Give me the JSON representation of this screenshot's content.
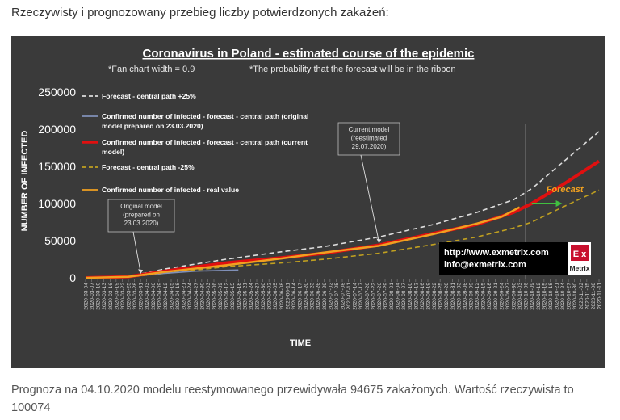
{
  "intro_text": "Rzeczywisty i prognozowany przebieg liczby potwierdzonych zakażeń:",
  "footer_text": "Prognoza na 04.10.2020 modelu reestymowanego przewidywała 94675 zakażonych. Wartość rzeczywista to 100074",
  "chart_data": {
    "type": "line",
    "title": "Coronavirus in Poland - estimated course of the epidemic",
    "subtitle_left": "*Fan chart width = 0.9",
    "subtitle_right": "*The probability that the forecast will be in the ribbon",
    "xlabel": "TIME",
    "ylabel": "NUMBER OF INFECTED",
    "ylim": [
      0,
      250000
    ],
    "yticks": [
      0,
      50000,
      100000,
      150000,
      200000,
      250000
    ],
    "grid": false,
    "legend_position": "top-left",
    "x": [
      "2020-03-04",
      "2020-03-07",
      "2020-03-10",
      "2020-03-13",
      "2020-03-16",
      "2020-03-19",
      "2020-03-22",
      "2020-03-25",
      "2020-03-28",
      "2020-03-31",
      "2020-04-03",
      "2020-04-06",
      "2020-04-09",
      "2020-04-12",
      "2020-04-15",
      "2020-04-18",
      "2020-04-21",
      "2020-04-24",
      "2020-04-27",
      "2020-04-30",
      "2020-05-03",
      "2020-05-06",
      "2020-05-09",
      "2020-05-12",
      "2020-05-15",
      "2020-05-18",
      "2020-05-21",
      "2020-05-24",
      "2020-05-27",
      "2020-05-30",
      "2020-06-02",
      "2020-06-05",
      "2020-06-08",
      "2020-06-11",
      "2020-06-14",
      "2020-06-17",
      "2020-06-20",
      "2020-06-23",
      "2020-06-26",
      "2020-06-29",
      "2020-07-02",
      "2020-07-05",
      "2020-07-08",
      "2020-07-11",
      "2020-07-14",
      "2020-07-17",
      "2020-07-20",
      "2020-07-23",
      "2020-07-26",
      "2020-07-29",
      "2020-08-01",
      "2020-08-04",
      "2020-08-07",
      "2020-08-10",
      "2020-08-13",
      "2020-08-16",
      "2020-08-19",
      "2020-08-22",
      "2020-08-25",
      "2020-08-28",
      "2020-08-31",
      "2020-09-03",
      "2020-09-06",
      "2020-09-09",
      "2020-09-12",
      "2020-09-15",
      "2020-09-18",
      "2020-09-21",
      "2020-09-24",
      "2020-09-27",
      "2020-09-30",
      "2020-10-03",
      "2020-10-06",
      "2020-10-09",
      "2020-10-12",
      "2020-10-15",
      "2020-10-18",
      "2020-10-21",
      "2020-10-24",
      "2020-10-27",
      "2020-10-30",
      "2020-11-02",
      "2020-11-05",
      "2020-11-08",
      "2020-11-11"
    ],
    "series": [
      {
        "name": "Forecast - central path +25%",
        "color": "#dddddd",
        "style": "dashed",
        "points": [
          [
            "2020-03-04",
            0
          ],
          [
            "2020-03-25",
            2000
          ],
          [
            "2020-04-12",
            12000
          ],
          [
            "2020-05-12",
            25000
          ],
          [
            "2020-06-08",
            35000
          ],
          [
            "2020-06-29",
            42000
          ],
          [
            "2020-07-26",
            55000
          ],
          [
            "2020-08-22",
            72000
          ],
          [
            "2020-09-12",
            88000
          ],
          [
            "2020-09-30",
            105000
          ],
          [
            "2020-10-09",
            120000
          ],
          [
            "2020-10-24",
            155000
          ],
          [
            "2020-11-11",
            197000
          ]
        ]
      },
      {
        "name": "Confirmed number of infected - forecast - central path (original model prepared on 23.03.2020)",
        "color": "#8090b8",
        "style": "solid",
        "points": [
          [
            "2020-03-04",
            0
          ],
          [
            "2020-03-25",
            1200
          ],
          [
            "2020-04-09",
            5500
          ],
          [
            "2020-04-27",
            9000
          ],
          [
            "2020-05-18",
            10500
          ]
        ]
      },
      {
        "name": "Confirmed number of infected - forecast - central path (current model)",
        "color": "#e01010",
        "style": "solid",
        "points": [
          [
            "2020-03-04",
            0
          ],
          [
            "2020-03-25",
            1500
          ],
          [
            "2020-04-12",
            9000
          ],
          [
            "2020-05-12",
            20000
          ],
          [
            "2020-06-08",
            27000
          ],
          [
            "2020-06-29",
            33000
          ],
          [
            "2020-07-26",
            44000
          ],
          [
            "2020-08-22",
            60000
          ],
          [
            "2020-09-12",
            72000
          ],
          [
            "2020-09-30",
            88000
          ],
          [
            "2020-10-09",
            100000
          ],
          [
            "2020-10-24",
            125000
          ],
          [
            "2020-11-11",
            157000
          ]
        ]
      },
      {
        "name": "Forecast - central path  -25%",
        "color": "#c0a020",
        "style": "dashed",
        "points": [
          [
            "2020-03-04",
            0
          ],
          [
            "2020-03-25",
            1000
          ],
          [
            "2020-04-12",
            6000
          ],
          [
            "2020-05-12",
            15000
          ],
          [
            "2020-06-08",
            20000
          ],
          [
            "2020-06-29",
            25000
          ],
          [
            "2020-07-26",
            33000
          ],
          [
            "2020-08-22",
            45000
          ],
          [
            "2020-09-12",
            55000
          ],
          [
            "2020-09-30",
            67000
          ],
          [
            "2020-10-09",
            75000
          ],
          [
            "2020-10-24",
            95000
          ],
          [
            "2020-11-11",
            118000
          ]
        ]
      },
      {
        "name": "Confirmed number of infected - real value",
        "color": "#f0a020",
        "style": "solid",
        "points": [
          [
            "2020-03-04",
            0
          ],
          [
            "2020-03-25",
            1300
          ],
          [
            "2020-04-12",
            8000
          ],
          [
            "2020-05-12",
            17000
          ],
          [
            "2020-06-08",
            26000
          ],
          [
            "2020-06-29",
            34000
          ],
          [
            "2020-07-26",
            43000
          ],
          [
            "2020-08-22",
            59000
          ],
          [
            "2020-09-12",
            73000
          ],
          [
            "2020-09-24",
            82000
          ],
          [
            "2020-10-03",
            95000
          ]
        ]
      }
    ],
    "forecast_label": "Forecast",
    "forecast_arrow": {
      "from": [
        "2020-10-09",
        100000
      ],
      "to": [
        "2020-10-24",
        100000
      ],
      "color": "#40c040"
    },
    "vertical_marker_x": "2020-10-06",
    "annotations": [
      {
        "text": "Original model\n(prepared on\n23.03.2020)",
        "pointer": [
          "2020-03-31",
          3000
        ]
      },
      {
        "text": "Current model\n(reestimated\n29.07.2020)",
        "pointer": [
          "2020-07-26",
          44000
        ]
      }
    ],
    "watermark": {
      "line1": "http://www.exmetrix.com",
      "line2": "info@exmetrix.com",
      "logo_letters": "E x",
      "logo_word": "Metrix"
    }
  }
}
